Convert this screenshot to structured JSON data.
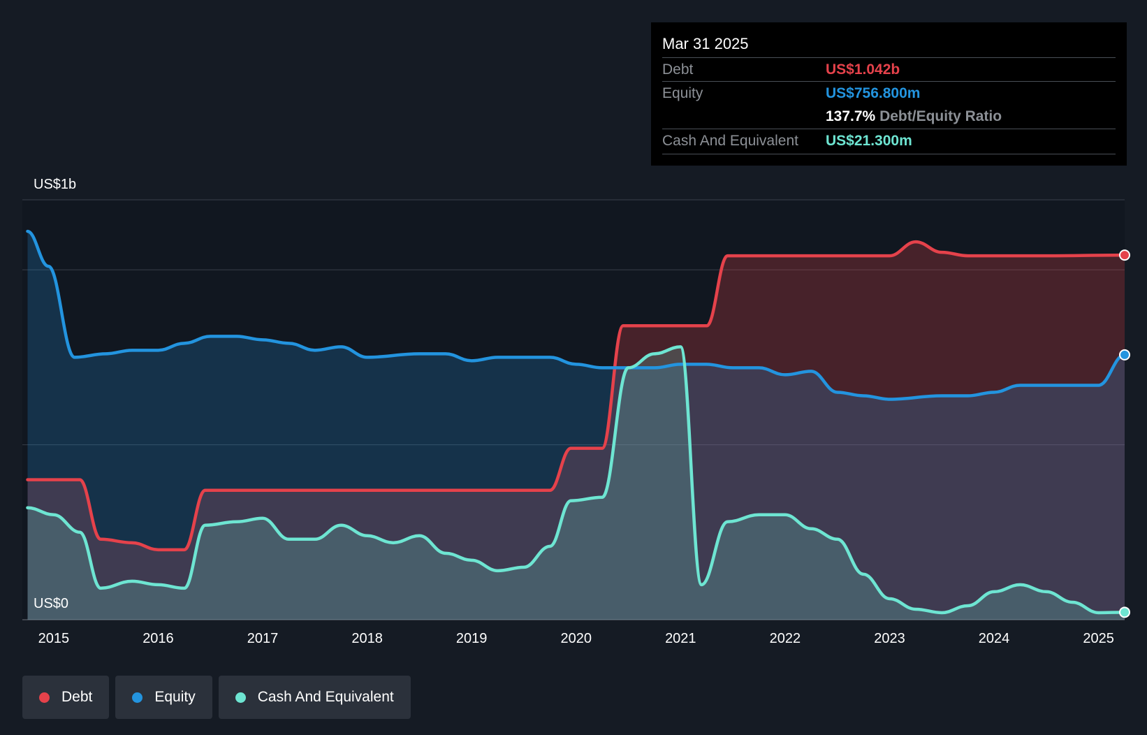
{
  "tooltip": {
    "date": "Mar 31 2025",
    "debt_label": "Debt",
    "debt_value": "US$1.042b",
    "equity_label": "Equity",
    "equity_value": "US$756.800m",
    "ratio_value": "137.7%",
    "ratio_label": "Debt/Equity Ratio",
    "cash_label": "Cash And Equivalent",
    "cash_value": "US$21.300m"
  },
  "legend": [
    {
      "label": "Debt",
      "color": "#e5424b"
    },
    {
      "label": "Equity",
      "color": "#2394df"
    },
    {
      "label": "Cash And Equivalent",
      "color": "#6ee5d2"
    }
  ],
  "chart_data": {
    "type": "area",
    "y_tick_labels": {
      "top": "US$1b",
      "bottom": "US$0"
    },
    "ylim": [
      0,
      1.2
    ],
    "xlim": [
      2014.7,
      2025.25
    ],
    "x_ticks": [
      2015,
      2016,
      2017,
      2018,
      2019,
      2020,
      2021,
      2022,
      2023,
      2024,
      2025
    ],
    "grid_values": [
      0,
      0.5,
      1.0,
      1.2
    ],
    "unit": "US$ billions",
    "series": [
      {
        "name": "Debt",
        "color": "#e5424b",
        "points": [
          [
            2014.75,
            0.4
          ],
          [
            2015.25,
            0.4
          ],
          [
            2015.45,
            0.23
          ],
          [
            2015.75,
            0.22
          ],
          [
            2016.0,
            0.2
          ],
          [
            2016.25,
            0.2
          ],
          [
            2016.45,
            0.37
          ],
          [
            2017.0,
            0.37
          ],
          [
            2018.0,
            0.37
          ],
          [
            2019.0,
            0.37
          ],
          [
            2019.75,
            0.37
          ],
          [
            2019.95,
            0.49
          ],
          [
            2020.25,
            0.49
          ],
          [
            2020.45,
            0.84
          ],
          [
            2021.25,
            0.84
          ],
          [
            2021.45,
            1.04
          ],
          [
            2022.0,
            1.04
          ],
          [
            2023.0,
            1.04
          ],
          [
            2023.25,
            1.08
          ],
          [
            2023.5,
            1.05
          ],
          [
            2023.75,
            1.04
          ],
          [
            2024.5,
            1.04
          ],
          [
            2025.25,
            1.042
          ]
        ]
      },
      {
        "name": "Equity",
        "color": "#2394df",
        "points": [
          [
            2014.75,
            1.11
          ],
          [
            2014.95,
            1.01
          ],
          [
            2015.2,
            0.75
          ],
          [
            2015.5,
            0.76
          ],
          [
            2015.75,
            0.77
          ],
          [
            2016.0,
            0.77
          ],
          [
            2016.25,
            0.79
          ],
          [
            2016.5,
            0.81
          ],
          [
            2016.75,
            0.81
          ],
          [
            2017.0,
            0.8
          ],
          [
            2017.25,
            0.79
          ],
          [
            2017.5,
            0.77
          ],
          [
            2017.75,
            0.78
          ],
          [
            2018.0,
            0.75
          ],
          [
            2018.5,
            0.76
          ],
          [
            2018.75,
            0.76
          ],
          [
            2019.0,
            0.74
          ],
          [
            2019.25,
            0.75
          ],
          [
            2019.5,
            0.75
          ],
          [
            2019.75,
            0.75
          ],
          [
            2020.0,
            0.73
          ],
          [
            2020.25,
            0.72
          ],
          [
            2020.5,
            0.72
          ],
          [
            2020.75,
            0.72
          ],
          [
            2021.0,
            0.73
          ],
          [
            2021.25,
            0.73
          ],
          [
            2021.5,
            0.72
          ],
          [
            2021.75,
            0.72
          ],
          [
            2022.0,
            0.7
          ],
          [
            2022.25,
            0.71
          ],
          [
            2022.5,
            0.65
          ],
          [
            2022.75,
            0.64
          ],
          [
            2023.0,
            0.63
          ],
          [
            2023.5,
            0.64
          ],
          [
            2023.75,
            0.64
          ],
          [
            2024.0,
            0.65
          ],
          [
            2024.25,
            0.67
          ],
          [
            2024.5,
            0.67
          ],
          [
            2024.75,
            0.67
          ],
          [
            2025.0,
            0.67
          ],
          [
            2025.25,
            0.757
          ]
        ]
      },
      {
        "name": "Cash And Equivalent",
        "color": "#6ee5d2",
        "points": [
          [
            2014.75,
            0.32
          ],
          [
            2015.0,
            0.3
          ],
          [
            2015.25,
            0.25
          ],
          [
            2015.45,
            0.09
          ],
          [
            2015.75,
            0.11
          ],
          [
            2016.0,
            0.1
          ],
          [
            2016.25,
            0.09
          ],
          [
            2016.45,
            0.27
          ],
          [
            2016.75,
            0.28
          ],
          [
            2017.0,
            0.29
          ],
          [
            2017.25,
            0.23
          ],
          [
            2017.5,
            0.23
          ],
          [
            2017.75,
            0.27
          ],
          [
            2018.0,
            0.24
          ],
          [
            2018.25,
            0.22
          ],
          [
            2018.5,
            0.24
          ],
          [
            2018.75,
            0.19
          ],
          [
            2019.0,
            0.17
          ],
          [
            2019.25,
            0.14
          ],
          [
            2019.5,
            0.15
          ],
          [
            2019.75,
            0.21
          ],
          [
            2019.95,
            0.34
          ],
          [
            2020.25,
            0.35
          ],
          [
            2020.5,
            0.72
          ],
          [
            2020.75,
            0.76
          ],
          [
            2021.0,
            0.78
          ],
          [
            2021.2,
            0.1
          ],
          [
            2021.45,
            0.28
          ],
          [
            2021.75,
            0.3
          ],
          [
            2022.0,
            0.3
          ],
          [
            2022.25,
            0.26
          ],
          [
            2022.5,
            0.23
          ],
          [
            2022.75,
            0.13
          ],
          [
            2023.0,
            0.06
          ],
          [
            2023.25,
            0.03
          ],
          [
            2023.5,
            0.02
          ],
          [
            2023.75,
            0.04
          ],
          [
            2024.0,
            0.08
          ],
          [
            2024.25,
            0.1
          ],
          [
            2024.5,
            0.08
          ],
          [
            2024.75,
            0.05
          ],
          [
            2025.0,
            0.02
          ],
          [
            2025.25,
            0.0213
          ]
        ]
      }
    ]
  }
}
